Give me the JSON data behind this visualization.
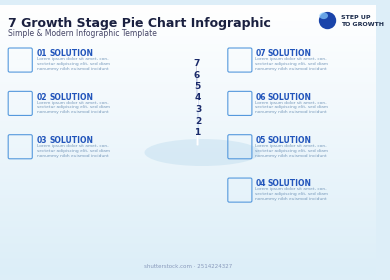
{
  "title": "7 Growth Stage Pie Chart Infographic",
  "subtitle": "Simple & Modern Infographic Template",
  "top_right_label": "STEP UP\nTO GROWTH",
  "solutions_left": [
    {
      "num": "01",
      "label": "SOLUTION",
      "body": "Lorem ipsum dolor sit amet, con-\nsectetur adipiscing elit, sed diam\nnonummy nibh euismod incidunt"
    },
    {
      "num": "02",
      "label": "SOLUTION",
      "body": "Lorem ipsum dolor sit amet, con-\nsectetur adipiscing elit, sed diam\nnonummy nibh euismod incidunt"
    },
    {
      "num": "03",
      "label": "SOLUTION",
      "body": "Lorem ipsum dolor sit amet, con-\nsectetur adipiscing elit, sed diam\nnonummy nibh euismod incidunt"
    }
  ],
  "solutions_right": [
    {
      "num": "07",
      "label": "SOLUTION",
      "body": "Lorem ipsum dolor sit amet, con-\nsectetur adipiscing elit, sed diam\nnonummy nibh euismod incidunt"
    },
    {
      "num": "06",
      "label": "SOLUTION",
      "body": "Lorem ipsum dolor sit amet, con-\nsectetur adipiscing elit, sed diam\nnonummy nibh euismod incidunt"
    },
    {
      "num": "05",
      "label": "SOLUTION",
      "body": "Lorem ipsum dolor sit amet, con-\nsectetur adipiscing elit, sed diam\nnonummy nibh euismod incidunt"
    },
    {
      "num": "04",
      "label": "SOLUTION",
      "body": "Lorem ipsum dolor sit amet, con-\nsectetur adipiscing elit, sed diam\nnonummy nibh euismod incidunt"
    }
  ],
  "shutterstock_text": "shutterstock.com · 2514224327",
  "colors_top": [
    "#7cc8f0",
    "#5aaee8",
    "#3d8edc",
    "#2a70cc",
    "#1f58bb",
    "#1844a8",
    "#122e8e"
  ],
  "colors_front": [
    "#5aaee8",
    "#3d8edc",
    "#2a70cc",
    "#1f58bb",
    "#1844a8",
    "#122e8e",
    "#0c1e72"
  ],
  "colors_dark": [
    "#3d8edc",
    "#2a70cc",
    "#1f58bb",
    "#1844a8",
    "#122e8e",
    "#0c1e72",
    "#071258"
  ],
  "bg_color": "#ddeef8",
  "title_color": "#1a2040",
  "subtitle_color": "#444466",
  "solution_num_color": "#2255bb",
  "text_body_color": "#7799bb",
  "icon_color": "#5599dd"
}
